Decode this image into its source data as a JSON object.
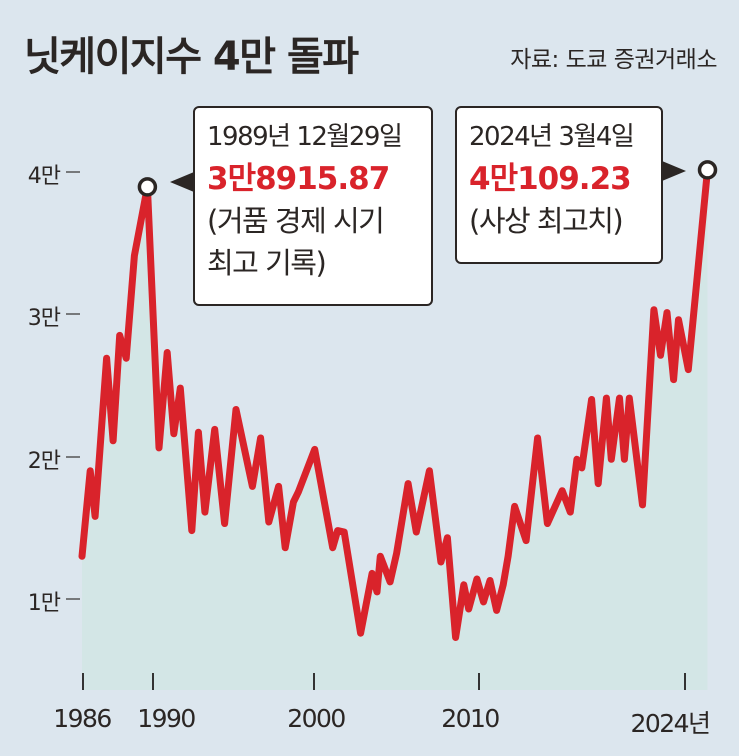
{
  "header": {
    "title": "닛케이지수 4만 돌파",
    "source": "자료: 도쿄 증권거래소"
  },
  "colors": {
    "background": "#dce6ee",
    "line": "#d9232b",
    "text": "#2b2624",
    "highlight_value": "#d9232b",
    "area_fill_top": "#ffffff",
    "area_fill_bottom": "#d3e6e6"
  },
  "annotations": [
    {
      "date": "1989년 12월29일",
      "value": "3만8915.87",
      "note_line1": "(거품 경제 시기",
      "note_line2": "최고 기록)"
    },
    {
      "date": "2024년 3월4일",
      "value": "4만109.23",
      "note_line1": "(사상 최고치)"
    }
  ],
  "chart_data": {
    "type": "line",
    "title": "닛케이지수 4만 돌파",
    "source": "자료: 도쿄 증권거래소",
    "xlabel": "",
    "ylabel": "",
    "x_tick_labels": [
      "1986",
      "1990",
      "2000",
      "2010",
      "2024년"
    ],
    "y_tick_labels": [
      "1만",
      "2만",
      "3만",
      "4만"
    ],
    "y_ticks": [
      10000,
      20000,
      30000,
      40000
    ],
    "ylim": [
      0,
      42000
    ],
    "xlim": [
      1986,
      2024.2
    ],
    "grid": false,
    "legend": null,
    "area_fill": true,
    "series": [
      {
        "name": "닛케이지수",
        "x": [
          1986.0,
          1986.5,
          1986.8,
          1987.5,
          1987.9,
          1988.3,
          1988.7,
          1989.2,
          1989.99,
          1990.7,
          1991.2,
          1991.6,
          1992.0,
          1992.7,
          1993.1,
          1993.5,
          1994.1,
          1994.7,
          1995.4,
          1996.4,
          1996.9,
          1997.4,
          1998.0,
          1998.4,
          1998.9,
          1999.2,
          2000.2,
          2001.3,
          2001.6,
          2002.0,
          2003.0,
          2003.7,
          2004.0,
          2004.2,
          2004.8,
          2005.2,
          2005.9,
          2006.4,
          2007.2,
          2007.9,
          2008.3,
          2008.8,
          2009.3,
          2009.6,
          2010.1,
          2010.5,
          2010.9,
          2011.3,
          2011.7,
          2012.0,
          2012.4,
          2013.1,
          2013.8,
          2014.4,
          2015.3,
          2015.8,
          2016.2,
          2016.5,
          2017.1,
          2017.5,
          2018.0,
          2018.3,
          2018.8,
          2019.1,
          2019.4,
          2020.2,
          2020.9,
          2021.3,
          2021.7,
          2022.1,
          2022.4,
          2023.0,
          2024.17
        ],
        "values": [
          13000,
          19000,
          15800,
          26900,
          21100,
          28500,
          26900,
          34100,
          38915.87,
          20600,
          27300,
          21600,
          24800,
          14800,
          21700,
          16100,
          21900,
          15300,
          23300,
          17900,
          21300,
          15400,
          17900,
          13600,
          16800,
          17500,
          20500,
          13600,
          14800,
          14700,
          7600,
          11800,
          10500,
          13000,
          11200,
          13200,
          18100,
          14700,
          19000,
          12600,
          14300,
          7300,
          11000,
          9300,
          11400,
          9800,
          11300,
          9200,
          11000,
          13000,
          16500,
          14100,
          21300,
          15300,
          17600,
          16100,
          19800,
          19200,
          24000,
          18100,
          24100,
          19800,
          24100,
          19800,
          24100,
          16600,
          30300,
          27100,
          30100,
          25400,
          29600,
          26100,
          40109.23
        ]
      }
    ],
    "highlights": [
      {
        "label": "1989년 12월29일",
        "value": 38915.87,
        "text": "3만8915.87 (거품 경제 시기 최고 기록)"
      },
      {
        "label": "2024년 3월4일",
        "value": 40109.23,
        "text": "4만109.23 (사상 최고치)"
      }
    ]
  }
}
